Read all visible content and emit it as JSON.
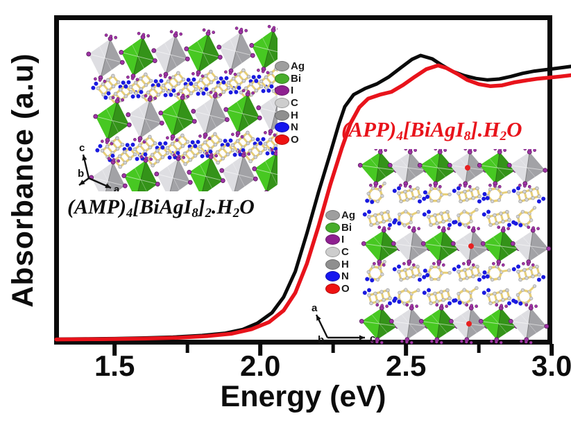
{
  "figure": {
    "y_axis_label": "Absorbance (a.u)",
    "x_axis_label": "Energy (eV)",
    "x_ticks": [
      "1.5",
      "2.0",
      "2.5",
      "3.0"
    ],
    "background": "#ffffff",
    "frame_color": "#0a0a0a"
  },
  "chart_data": {
    "type": "line",
    "title": "",
    "xlabel": "Energy (eV)",
    "ylabel": "Absorbance (a.u)",
    "xlim": [
      1.3,
      3.07
    ],
    "ylim": [
      0,
      1.15
    ],
    "x_tick_values": [
      1.5,
      2.0,
      2.5,
      3.0
    ],
    "x_minor_ticks": [
      1.75,
      2.25,
      2.75
    ],
    "grid": false,
    "legend_position": "none",
    "series": [
      {
        "name": "(AMP)4[BiAgI8]2.H2O",
        "color": "#0a0a0a",
        "points": [
          [
            1.3,
            0.002
          ],
          [
            1.4,
            0.003
          ],
          [
            1.5,
            0.004
          ],
          [
            1.6,
            0.006
          ],
          [
            1.7,
            0.009
          ],
          [
            1.8,
            0.015
          ],
          [
            1.88,
            0.023
          ],
          [
            1.94,
            0.036
          ],
          [
            1.99,
            0.058
          ],
          [
            2.04,
            0.095
          ],
          [
            2.08,
            0.15
          ],
          [
            2.12,
            0.24
          ],
          [
            2.16,
            0.375
          ],
          [
            2.2,
            0.52
          ],
          [
            2.24,
            0.655
          ],
          [
            2.27,
            0.76
          ],
          [
            2.29,
            0.82
          ],
          [
            2.32,
            0.862
          ],
          [
            2.36,
            0.884
          ],
          [
            2.4,
            0.9
          ],
          [
            2.44,
            0.924
          ],
          [
            2.48,
            0.955
          ],
          [
            2.52,
            0.986
          ],
          [
            2.55,
            1.0
          ],
          [
            2.59,
            0.988
          ],
          [
            2.62,
            0.968
          ],
          [
            2.66,
            0.944
          ],
          [
            2.7,
            0.929
          ],
          [
            2.74,
            0.919
          ],
          [
            2.78,
            0.914
          ],
          [
            2.82,
            0.917
          ],
          [
            2.86,
            0.926
          ],
          [
            2.9,
            0.937
          ],
          [
            2.94,
            0.945
          ],
          [
            2.98,
            0.95
          ],
          [
            3.02,
            0.955
          ],
          [
            3.07,
            0.962
          ]
        ]
      },
      {
        "name": "(APP)4[BiAgI8].H2O",
        "color": "#e8131b",
        "points": [
          [
            1.3,
            0.001
          ],
          [
            1.45,
            0.002
          ],
          [
            1.6,
            0.004
          ],
          [
            1.72,
            0.007
          ],
          [
            1.82,
            0.013
          ],
          [
            1.9,
            0.021
          ],
          [
            1.97,
            0.037
          ],
          [
            2.03,
            0.062
          ],
          [
            2.08,
            0.103
          ],
          [
            2.12,
            0.165
          ],
          [
            2.16,
            0.268
          ],
          [
            2.2,
            0.4
          ],
          [
            2.24,
            0.545
          ],
          [
            2.28,
            0.675
          ],
          [
            2.31,
            0.762
          ],
          [
            2.34,
            0.818
          ],
          [
            2.37,
            0.848
          ],
          [
            2.41,
            0.862
          ],
          [
            2.45,
            0.872
          ],
          [
            2.49,
            0.896
          ],
          [
            2.53,
            0.925
          ],
          [
            2.57,
            0.952
          ],
          [
            2.61,
            0.965
          ],
          [
            2.64,
            0.955
          ],
          [
            2.68,
            0.933
          ],
          [
            2.71,
            0.914
          ],
          [
            2.75,
            0.899
          ],
          [
            2.79,
            0.892
          ],
          [
            2.83,
            0.895
          ],
          [
            2.87,
            0.905
          ],
          [
            2.91,
            0.912
          ],
          [
            2.95,
            0.918
          ],
          [
            2.99,
            0.922
          ],
          [
            3.03,
            0.926
          ],
          [
            3.07,
            0.931
          ]
        ]
      }
    ]
  },
  "legend": {
    "entries": [
      {
        "symbol": "Ag",
        "color": "#9e9e9e"
      },
      {
        "symbol": "Bi",
        "color": "#47ad2b"
      },
      {
        "symbol": "I",
        "color": "#8e2090"
      },
      {
        "symbol": "C",
        "color": "#cdcdcd"
      },
      {
        "symbol": "H",
        "color": "#8f8f8f"
      },
      {
        "symbol": "N",
        "color": "#1616ee"
      },
      {
        "symbol": "O",
        "color": "#ee1212"
      }
    ]
  },
  "compound_labels": {
    "amp": {
      "color": "#0d0d0d",
      "segments": [
        {
          "t": "(AMP)",
          "sub": false
        },
        {
          "t": "4",
          "sub": true
        },
        {
          "t": "[BiAgI",
          "sub": false
        },
        {
          "t": "8",
          "sub": true
        },
        {
          "t": "]",
          "sub": false
        },
        {
          "t": "2",
          "sub": true
        },
        {
          "t": ".H",
          "sub": false
        },
        {
          "t": "2",
          "sub": true
        },
        {
          "t": "O",
          "sub": false
        }
      ]
    },
    "app": {
      "color": "#e8131b",
      "segments": [
        {
          "t": "(APP)",
          "sub": false
        },
        {
          "t": "4",
          "sub": true
        },
        {
          "t": "[BiAgI",
          "sub": false
        },
        {
          "t": "8",
          "sub": true
        },
        {
          "t": "].H",
          "sub": false
        },
        {
          "t": "2",
          "sub": true
        },
        {
          "t": "O",
          "sub": false
        }
      ]
    }
  },
  "structure_insets": {
    "left": {
      "compound": "(AMP)4[BiAgI8]2.H2O",
      "axis_labels": {
        "up": "c",
        "origin": "b",
        "diagonal": "a"
      }
    },
    "right": {
      "compound": "(APP)4[BiAgI8].H2O",
      "axis_labels": {
        "up": "a",
        "origin": "b",
        "right": "c"
      }
    },
    "palette": {
      "octahedron_green": "#3fb31e",
      "octahedron_gray": "#c6c6ca",
      "iodine_purple": "#a034a6",
      "bond_yellow": "#e8cf78",
      "carbon_gray": "#d2d2d2",
      "nitrogen_blue": "#1a1ae0",
      "oxygen_red": "#e82020"
    }
  }
}
